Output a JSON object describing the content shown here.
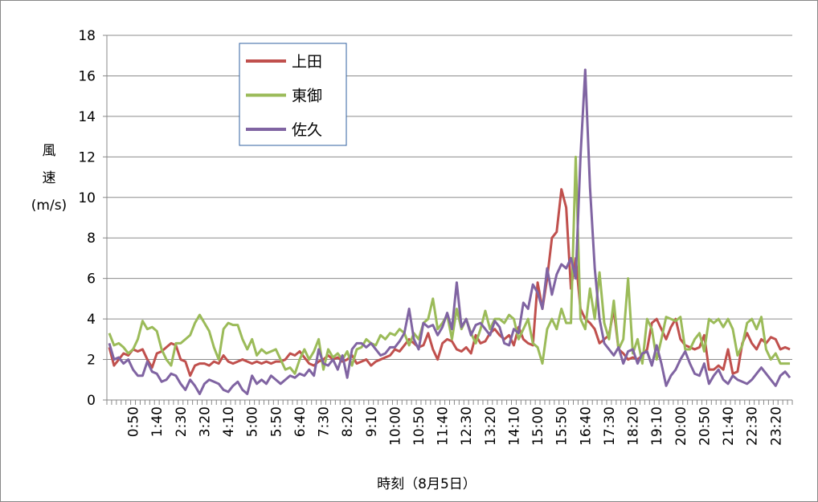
{
  "chart_data": {
    "type": "line",
    "xlabel": "時刻（8月5日）",
    "ylabel": [
      "風",
      "速",
      "(m/s)"
    ],
    "ylim": [
      0,
      18
    ],
    "yticks": [
      0,
      2,
      4,
      6,
      8,
      10,
      12,
      14,
      16,
      18
    ],
    "grid": true,
    "categories": [
      null,
      null,
      null,
      null,
      null,
      "0:50",
      null,
      null,
      null,
      null,
      "1:40",
      null,
      null,
      null,
      null,
      "2:30",
      null,
      null,
      null,
      null,
      "3:20",
      null,
      null,
      null,
      null,
      "4:10",
      null,
      null,
      null,
      null,
      "5:00",
      null,
      null,
      null,
      null,
      "5:50",
      null,
      null,
      null,
      null,
      "6:40",
      null,
      null,
      null,
      null,
      "7:30",
      null,
      null,
      null,
      null,
      "8:20",
      null,
      null,
      null,
      null,
      "9:10",
      null,
      null,
      null,
      null,
      "10:00",
      null,
      null,
      null,
      null,
      "10:50",
      null,
      null,
      null,
      null,
      "11:40",
      null,
      null,
      null,
      null,
      "12:30",
      null,
      null,
      null,
      null,
      "13:20",
      null,
      null,
      null,
      null,
      "14:10",
      null,
      null,
      null,
      null,
      "15:00",
      null,
      null,
      null,
      null,
      "15:50",
      null,
      null,
      null,
      null,
      "16:40",
      null,
      null,
      null,
      null,
      "17:30",
      null,
      null,
      null,
      null,
      "18:20",
      null,
      null,
      null,
      null,
      "19:10",
      null,
      null,
      null,
      null,
      "20:00",
      null,
      null,
      null,
      null,
      "20:50",
      null,
      null,
      null,
      null,
      "21:40",
      null,
      null,
      null,
      null,
      "22:30",
      null,
      null,
      null,
      null,
      "23:20",
      null,
      null,
      null
    ],
    "series": [
      {
        "name": "上田",
        "color": "#c0504d",
        "values": [
          2.6,
          1.7,
          2.0,
          2.3,
          2.2,
          2.5,
          2.4,
          2.5,
          2.0,
          1.6,
          2.3,
          2.4,
          2.6,
          2.8,
          2.7,
          2.0,
          1.9,
          1.2,
          1.7,
          1.8,
          1.8,
          1.7,
          1.9,
          1.8,
          2.2,
          1.9,
          1.8,
          1.9,
          2.0,
          1.9,
          1.8,
          1.9,
          1.8,
          1.9,
          1.8,
          1.9,
          1.9,
          2.0,
          2.3,
          2.2,
          2.4,
          2.1,
          1.8,
          1.7,
          1.9,
          2.0,
          2.2,
          2.0,
          2.1,
          1.9,
          2.0,
          2.2,
          1.8,
          1.9,
          2.0,
          1.7,
          1.9,
          2.0,
          2.1,
          2.2,
          2.5,
          2.4,
          2.7,
          3.0,
          2.8,
          2.6,
          2.7,
          3.3,
          2.5,
          2.0,
          2.8,
          3.0,
          2.9,
          2.5,
          2.4,
          2.6,
          2.3,
          3.2,
          2.8,
          2.9,
          3.3,
          3.5,
          3.2,
          3.0,
          3.2,
          2.7,
          3.6,
          3.0,
          2.8,
          2.7,
          5.8,
          4.5,
          6.0,
          8.0,
          8.3,
          10.4,
          9.5,
          5.5,
          7.0,
          4.5,
          4.0,
          3.8,
          3.5,
          2.8,
          3.0,
          3.2,
          4.5,
          2.5,
          2.3,
          2.0,
          2.1,
          2.0,
          2.2,
          2.5,
          3.8,
          4.0,
          3.5,
          3.0,
          3.6,
          4.0,
          3.0,
          2.7,
          2.6,
          2.5,
          2.6,
          3.2,
          1.5,
          1.5,
          1.7,
          1.5,
          2.5,
          1.3,
          1.4,
          2.8,
          3.3,
          2.8,
          2.5,
          3.0,
          2.8,
          3.1,
          3.0,
          2.5,
          2.6,
          2.5
        ]
      },
      {
        "name": "東御",
        "color": "#9bbb59",
        "values": [
          3.3,
          2.7,
          2.8,
          2.6,
          2.3,
          2.5,
          3.0,
          3.9,
          3.5,
          3.6,
          3.4,
          2.5,
          2.0,
          1.7,
          2.8,
          2.8,
          3.0,
          3.2,
          3.8,
          4.2,
          3.8,
          3.4,
          2.6,
          2.0,
          3.5,
          3.8,
          3.7,
          3.7,
          3.0,
          2.5,
          3.0,
          2.2,
          2.5,
          2.3,
          2.4,
          2.5,
          2.0,
          1.5,
          1.6,
          1.3,
          2.0,
          2.5,
          2.0,
          2.4,
          3.0,
          1.5,
          2.5,
          2.1,
          2.3,
          2.0,
          2.4,
          1.7,
          2.5,
          2.6,
          3.0,
          2.8,
          2.7,
          3.2,
          3.0,
          3.3,
          3.2,
          3.5,
          3.3,
          2.7,
          3.3,
          3.0,
          3.8,
          4.0,
          5.0,
          3.5,
          3.8,
          4.2,
          3.0,
          4.5,
          3.5,
          4.0,
          3.3,
          2.8,
          3.5,
          4.4,
          3.5,
          4.0,
          4.0,
          3.8,
          4.2,
          4.0,
          3.0,
          3.5,
          4.0,
          2.8,
          2.6,
          1.8,
          3.5,
          4.0,
          3.5,
          4.5,
          3.8,
          3.8,
          12.0,
          4.0,
          3.5,
          5.5,
          4.0,
          6.3,
          3.8,
          3.0,
          4.9,
          2.5,
          3.0,
          6.0,
          2.3,
          3.0,
          1.8,
          4.0,
          3.5,
          2.0,
          3.0,
          4.1,
          4.0,
          3.9,
          4.1,
          2.5,
          2.5,
          3.0,
          3.3,
          2.4,
          4.0,
          3.8,
          4.0,
          3.6,
          4.0,
          3.5,
          2.2,
          2.7,
          3.8,
          4.0,
          3.5,
          4.1,
          2.5,
          2.0,
          2.3,
          1.8,
          1.8,
          1.8
        ]
      },
      {
        "name": "佐久",
        "color": "#8064a2",
        "values": [
          2.8,
          2.0,
          2.1,
          1.8,
          2.0,
          1.5,
          1.2,
          1.2,
          1.9,
          1.4,
          1.3,
          0.9,
          1.0,
          1.3,
          1.2,
          0.8,
          0.5,
          1.0,
          0.7,
          0.3,
          0.8,
          1.0,
          0.9,
          0.8,
          0.5,
          0.4,
          0.7,
          0.9,
          0.5,
          0.3,
          1.2,
          0.8,
          1.0,
          0.8,
          1.2,
          1.0,
          0.8,
          1.0,
          1.2,
          1.1,
          1.3,
          1.2,
          1.5,
          1.2,
          2.5,
          1.8,
          1.7,
          2.0,
          1.5,
          2.2,
          1.1,
          2.5,
          2.8,
          2.8,
          2.6,
          2.8,
          2.5,
          2.2,
          2.3,
          2.6,
          2.6,
          2.9,
          3.3,
          4.5,
          3.0,
          2.5,
          3.8,
          3.6,
          3.7,
          3.2,
          3.6,
          4.3,
          3.5,
          5.8,
          3.6,
          4.0,
          3.2,
          3.7,
          3.8,
          3.5,
          3.2,
          3.9,
          3.6,
          2.8,
          2.7,
          3.5,
          3.3,
          4.8,
          4.5,
          5.7,
          5.3,
          4.5,
          6.5,
          5.2,
          6.2,
          6.7,
          6.5,
          7.0,
          6.0,
          12.0,
          16.3,
          10.5,
          6.5,
          4.0,
          2.8,
          2.5,
          2.2,
          2.6,
          1.8,
          2.4,
          2.5,
          1.8,
          2.3,
          2.4,
          1.7,
          2.7,
          1.8,
          0.7,
          1.2,
          1.5,
          2.0,
          2.4,
          1.8,
          1.3,
          1.2,
          1.8,
          0.8,
          1.2,
          1.5,
          1.0,
          0.8,
          1.2,
          1.0,
          0.9,
          0.8,
          1.0,
          1.3,
          1.6,
          1.3,
          1.0,
          0.7,
          1.2,
          1.4,
          1.1
        ]
      }
    ]
  }
}
